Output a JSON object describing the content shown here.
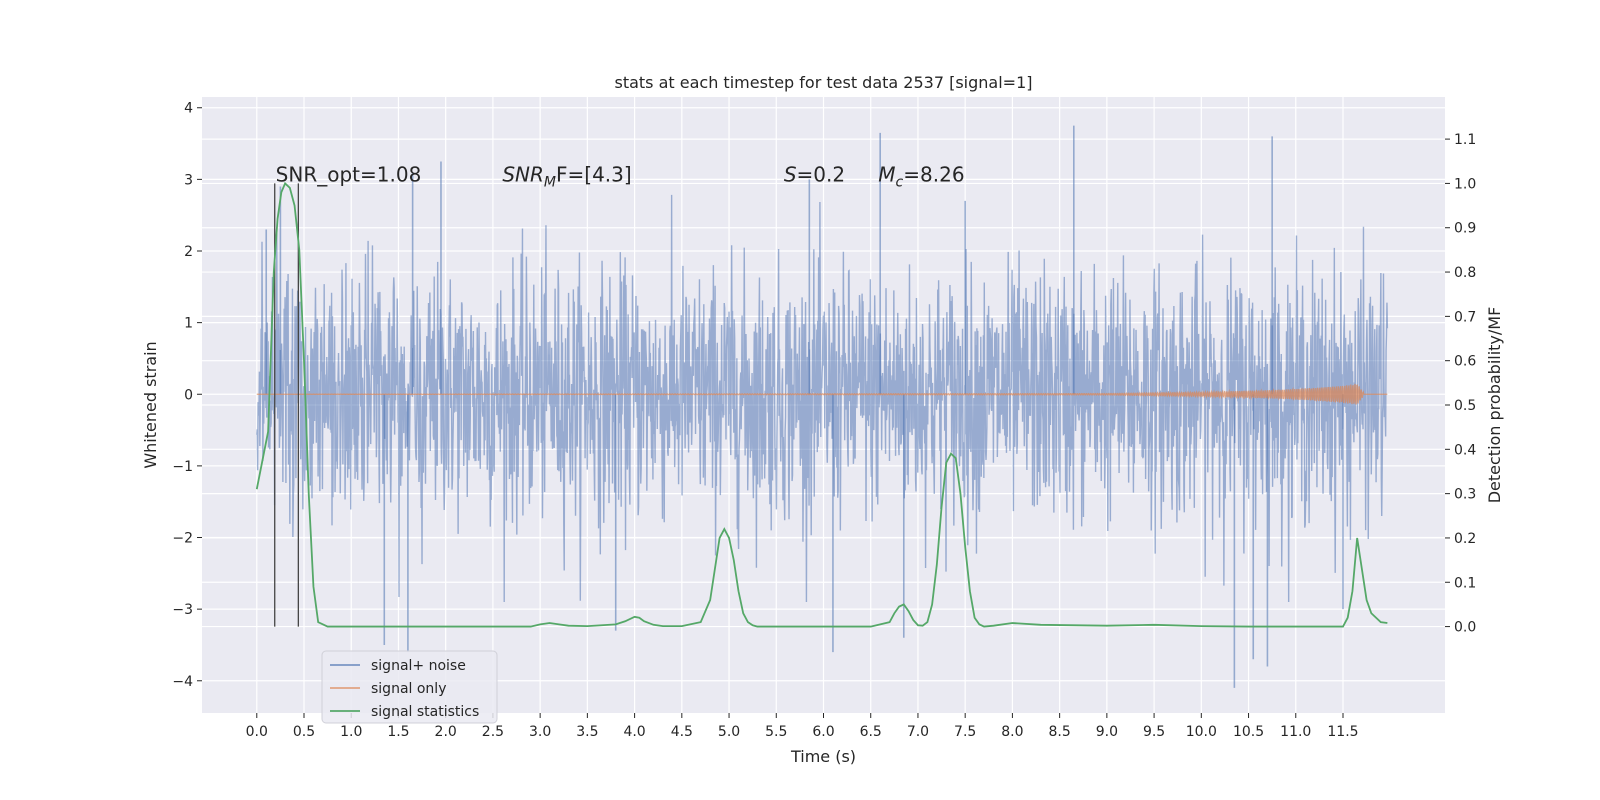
{
  "chart_data": {
    "type": "line",
    "title": "stats at each timestep for test data 2537 [signal=1]",
    "xlabel": "Time (s)",
    "ylabel": "Whitened strain",
    "ylabel_right": "Detection probability/MF",
    "xlim": [
      -0.58,
      12.58
    ],
    "ylim": [
      -4.45,
      4.15
    ],
    "ylim_right": [
      -0.195,
      1.195
    ],
    "x_ticks": [
      0.0,
      0.5,
      1.0,
      1.5,
      2.0,
      2.5,
      3.0,
      3.5,
      4.0,
      4.5,
      5.0,
      5.5,
      6.0,
      6.5,
      7.0,
      7.5,
      8.0,
      8.5,
      9.0,
      9.5,
      10.0,
      10.5,
      11.0,
      11.5
    ],
    "x_tick_labels": [
      "0.0",
      "0.5",
      "1.0",
      "1.5",
      "2.0",
      "2.5",
      "3.0",
      "3.5",
      "4.0",
      "4.5",
      "5.0",
      "5.5",
      "6.0",
      "6.5",
      "7.0",
      "7.5",
      "8.0",
      "8.5",
      "9.0",
      "9.5",
      "10.0",
      "10.5",
      "11.0",
      "11.5"
    ],
    "y_ticks": [
      -4,
      -3,
      -2,
      -1,
      0,
      1,
      2,
      3,
      4
    ],
    "y_tick_labels": [
      "−4",
      "−3",
      "−2",
      "−1",
      "0",
      "1",
      "2",
      "3",
      "4"
    ],
    "y_ticks_right": [
      0.0,
      0.1,
      0.2,
      0.3,
      0.4,
      0.5,
      0.6,
      0.7,
      0.8,
      0.9,
      1.0,
      1.1
    ],
    "y_tick_labels_right": [
      "0.0",
      "0.1",
      "0.2",
      "0.3",
      "0.4",
      "0.5",
      "0.6",
      "0.7",
      "0.8",
      "0.9",
      "1.0",
      "1.1"
    ],
    "grid": true,
    "legend_position": "lower-left",
    "series": [
      {
        "name": "signal+ noise",
        "color": "#4c72b0",
        "axis": "left",
        "noise_band_typical": [
          -1.7,
          1.7
        ],
        "peaks": [
          {
            "x": 0.1,
            "y": 2.3
          },
          {
            "x": 0.25,
            "y": 2.9
          },
          {
            "x": 1.65,
            "y": 3.1
          },
          {
            "x": 1.95,
            "y": 3.25
          },
          {
            "x": 5.85,
            "y": 3.0
          },
          {
            "x": 6.6,
            "y": 3.65
          },
          {
            "x": 7.5,
            "y": 2.7
          },
          {
            "x": 8.65,
            "y": 3.75
          },
          {
            "x": 10.75,
            "y": 3.6
          },
          {
            "x": 1.35,
            "y": -3.5
          },
          {
            "x": 1.6,
            "y": -3.6
          },
          {
            "x": 6.1,
            "y": -3.6
          },
          {
            "x": 6.85,
            "y": -3.4
          },
          {
            "x": 10.35,
            "y": -4.1
          },
          {
            "x": 10.55,
            "y": -3.7
          },
          {
            "x": 10.7,
            "y": -3.8
          },
          {
            "x": 3.8,
            "y": -3.3
          },
          {
            "x": 11.5,
            "y": -3.0
          }
        ]
      },
      {
        "name": "signal only",
        "color": "#dd8452",
        "axis": "left",
        "envelope_x": [
          0.0,
          9.0,
          10.0,
          10.8,
          11.2,
          11.5,
          11.65,
          11.72
        ],
        "envelope_amp": [
          0.0,
          0.01,
          0.03,
          0.06,
          0.09,
          0.12,
          0.15,
          0.02
        ]
      },
      {
        "name": "signal statistics",
        "color": "#55a868",
        "axis": "right",
        "x": [
          0.0,
          0.12,
          0.18,
          0.22,
          0.26,
          0.3,
          0.35,
          0.4,
          0.45,
          0.5,
          0.55,
          0.6,
          0.65,
          0.75,
          1.0,
          2.0,
          2.9,
          3.0,
          3.1,
          3.2,
          3.3,
          3.5,
          3.8,
          3.9,
          4.0,
          4.05,
          4.1,
          4.2,
          4.3,
          4.5,
          4.7,
          4.8,
          4.85,
          4.9,
          4.95,
          5.0,
          5.05,
          5.1,
          5.15,
          5.2,
          5.25,
          5.3,
          5.4,
          5.5,
          6.0,
          6.5,
          6.7,
          6.75,
          6.8,
          6.85,
          6.9,
          6.95,
          7.0,
          7.05,
          7.1,
          7.15,
          7.2,
          7.25,
          7.3,
          7.35,
          7.4,
          7.45,
          7.5,
          7.55,
          7.6,
          7.65,
          7.7,
          7.8,
          8.0,
          8.3,
          9.0,
          9.5,
          10.0,
          10.5,
          11.0,
          11.5,
          11.55,
          11.6,
          11.65,
          11.7,
          11.75,
          11.8,
          11.9,
          11.97
        ],
        "y": [
          0.31,
          0.44,
          0.8,
          0.92,
          0.98,
          1.0,
          0.99,
          0.95,
          0.85,
          0.6,
          0.3,
          0.09,
          0.01,
          0.0,
          0.0,
          0.0,
          0.0,
          0.005,
          0.008,
          0.005,
          0.002,
          0.001,
          0.005,
          0.012,
          0.022,
          0.02,
          0.012,
          0.004,
          0.001,
          0.001,
          0.01,
          0.06,
          0.13,
          0.2,
          0.22,
          0.2,
          0.15,
          0.08,
          0.03,
          0.01,
          0.003,
          0.0,
          0.0,
          0.0,
          0.0,
          0.0,
          0.01,
          0.03,
          0.045,
          0.05,
          0.035,
          0.015,
          0.003,
          0.002,
          0.01,
          0.05,
          0.14,
          0.27,
          0.37,
          0.39,
          0.38,
          0.3,
          0.18,
          0.08,
          0.02,
          0.005,
          0.0,
          0.002,
          0.008,
          0.004,
          0.002,
          0.004,
          0.001,
          0.0,
          0.0,
          0.0,
          0.02,
          0.08,
          0.2,
          0.13,
          0.06,
          0.03,
          0.01,
          0.008
        ]
      }
    ],
    "vlines": [
      {
        "x": 0.19,
        "color": "#444444"
      },
      {
        "x": 0.44,
        "color": "#444444"
      }
    ],
    "annotations": [
      {
        "name": "snr-opt",
        "text": "SNR_opt=1.08",
        "x": 0.2,
        "y": 2.97
      },
      {
        "name": "snr-mf",
        "text": "SNR",
        "sub": "M",
        "rest": "F=[4.3]",
        "italic": true,
        "x": 2.6,
        "y": 2.97
      },
      {
        "name": "s-value",
        "text": "S",
        "rest": "=0.2",
        "italic": true,
        "x": 5.58,
        "y": 2.97
      },
      {
        "name": "chirp-mass",
        "text": "M",
        "sub": "c",
        "rest": "=8.26",
        "italic": true,
        "x": 6.58,
        "y": 2.97
      }
    ]
  }
}
